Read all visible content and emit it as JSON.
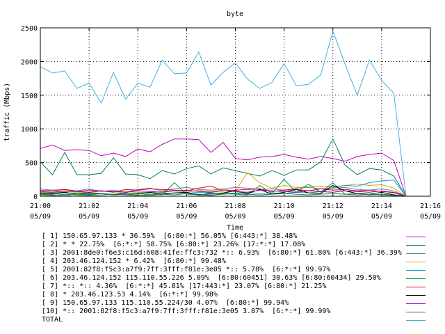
{
  "chart_data": {
    "type": "line",
    "title": "byte",
    "xlabel": "Time",
    "ylabel": "traffic (Mbps)",
    "ylim": [
      0,
      2500
    ],
    "yticks": [
      "0",
      "500",
      "1000",
      "1500",
      "2000",
      "2500"
    ],
    "xlim": [
      "05/09 21:00",
      "05/09 21:16"
    ],
    "xticks": [
      {
        "time": "21:00",
        "date": "05/09"
      },
      {
        "time": "21:02",
        "date": "05/09"
      },
      {
        "time": "21:04",
        "date": "05/09"
      },
      {
        "time": "21:06",
        "date": "05/09"
      },
      {
        "time": "21:08",
        "date": "05/09"
      },
      {
        "time": "21:10",
        "date": "05/09"
      },
      {
        "time": "21:12",
        "date": "05/09"
      },
      {
        "time": "21:14",
        "date": "05/09"
      },
      {
        "time": "21:16",
        "date": "05/09"
      }
    ],
    "x": [
      "21:00",
      "21:00:30",
      "21:01",
      "21:01:30",
      "21:02",
      "21:02:30",
      "21:03",
      "21:03:30",
      "21:04",
      "21:04:30",
      "21:05",
      "21:05:30",
      "21:06",
      "21:06:30",
      "21:07",
      "21:07:30",
      "21:08",
      "21:08:30",
      "21:09",
      "21:09:30",
      "21:10",
      "21:10:30",
      "21:11",
      "21:11:30",
      "21:12",
      "21:12:30",
      "21:13",
      "21:13:30",
      "21:14",
      "21:14:30",
      "21:15"
    ],
    "series": [
      {
        "name": "[ 1] 150.65.97.133 * 36.59%  [6:80:*] 56.05% [6:443:*] 38.48%",
        "color": "#c000c0",
        "values": [
          710,
          760,
          680,
          690,
          680,
          600,
          640,
          590,
          700,
          660,
          770,
          850,
          850,
          840,
          650,
          800,
          560,
          540,
          580,
          590,
          620,
          580,
          550,
          590,
          560,
          520,
          590,
          620,
          640,
          530,
          0
        ]
      },
      {
        "name": "[ 2] * * 22.75%  [6:*:*] 58.75% [6:80:*] 23.26% [17:*:*] 17.08%",
        "color": "#008060",
        "values": [
          510,
          320,
          650,
          320,
          320,
          340,
          570,
          330,
          320,
          260,
          380,
          330,
          410,
          450,
          330,
          420,
          380,
          340,
          300,
          380,
          310,
          390,
          390,
          510,
          850,
          460,
          320,
          410,
          390,
          300,
          0
        ]
      },
      {
        "name": "[ 3] 2001:8de0:f6e3:c16d:608:41fe:ffc3:732 *:: 6.93%  [6:80:*] 61.80% [6:443:*] 36.39%",
        "color": "#6080a0",
        "values": [
          110,
          90,
          100,
          80,
          110,
          70,
          90,
          60,
          100,
          120,
          80,
          110,
          130,
          100,
          90,
          110,
          130,
          120,
          100,
          110,
          90,
          120,
          130,
          110,
          120,
          130,
          100,
          90,
          110,
          80,
          0
        ]
      },
      {
        "name": "[ 4] 203.46.124.152 * 6.42%  [6:80:*] 99.48%",
        "color": "#e0a000",
        "values": [
          60,
          50,
          70,
          60,
          50,
          80,
          60,
          70,
          60,
          50,
          70,
          80,
          60,
          90,
          70,
          100,
          80,
          350,
          200,
          120,
          160,
          130,
          140,
          150,
          140,
          160,
          180,
          160,
          170,
          120,
          0
        ]
      },
      {
        "name": "[ 5] 2001:82f8:f5c3:a7f9:7ff:3fff:f81e:3e05 *:: 5.78%  [6:*:*] 99.97%",
        "color": "#00a0e0",
        "values": [
          40,
          30,
          50,
          40,
          30,
          40,
          30,
          50,
          40,
          30,
          40,
          50,
          40,
          60,
          50,
          40,
          50,
          60,
          40,
          50,
          40,
          60,
          50,
          70,
          130,
          160,
          150,
          200,
          230,
          240,
          0
        ]
      },
      {
        "name": "[ 6] 203.46.124.152 115.110.55.226 5.09%  [6:80:60451] 30.63% [6:80:60434] 29.50%",
        "color": "#00a040",
        "values": [
          20,
          10,
          30,
          20,
          10,
          20,
          30,
          20,
          10,
          30,
          20,
          200,
          30,
          20,
          10,
          40,
          30,
          20,
          160,
          40,
          250,
          60,
          180,
          60,
          200,
          30,
          40,
          20,
          30,
          20,
          0
        ]
      },
      {
        "name": "[ 7] *:: *:: 4.36%  [6:*:*] 45.81% [17:443:*] 23.07% [6:80:*] 21.25%",
        "color": "#e00000",
        "values": [
          90,
          80,
          100,
          70,
          90,
          80,
          60,
          100,
          90,
          110,
          100,
          90,
          80,
          120,
          150,
          80,
          90,
          100,
          110,
          70,
          90,
          100,
          80,
          110,
          90,
          100,
          80,
          90,
          70,
          60,
          0
        ]
      },
      {
        "name": "[ 8] * 203.46.123.53 4.14%  [6:*:*] 99.98%",
        "color": "#000000",
        "values": [
          50,
          40,
          60,
          30,
          50,
          40,
          20,
          50,
          40,
          60,
          30,
          50,
          60,
          20,
          40,
          50,
          80,
          40,
          100,
          30,
          60,
          100,
          50,
          40,
          160,
          80,
          40,
          30,
          60,
          20,
          0
        ]
      },
      {
        "name": "[ 9] 150.65.97.133 115.110.55.224/30 4.07%  [6:80:*] 99.94%",
        "color": "#8000c0",
        "values": [
          70,
          60,
          80,
          70,
          60,
          80,
          70,
          60,
          80,
          70,
          60,
          80,
          90,
          70,
          60,
          80,
          70,
          60,
          90,
          80,
          70,
          60,
          80,
          70,
          60,
          80,
          70,
          60,
          80,
          50,
          0
        ]
      },
      {
        "name": "[10] *:: 2001:82f8:f5c3:a7f9:7ff:3fff:f81e:3e05 3.87%  [6:*:*] 99.99%",
        "color": "#208040",
        "values": [
          30,
          20,
          10,
          30,
          20,
          40,
          20,
          30,
          20,
          10,
          30,
          20,
          40,
          30,
          20,
          30,
          40,
          30,
          20,
          30,
          40,
          30,
          20,
          30,
          40,
          30,
          20,
          30,
          20,
          10,
          0
        ]
      },
      {
        "name": "TOTAL",
        "color": "#40b0e0",
        "values": [
          1920,
          1830,
          1860,
          1600,
          1680,
          1380,
          1840,
          1440,
          1680,
          1620,
          2020,
          1820,
          1830,
          2140,
          1650,
          1840,
          1980,
          1740,
          1600,
          1690,
          1970,
          1640,
          1660,
          1800,
          2450,
          1960,
          1500,
          2020,
          1720,
          1530,
          0
        ]
      }
    ]
  }
}
